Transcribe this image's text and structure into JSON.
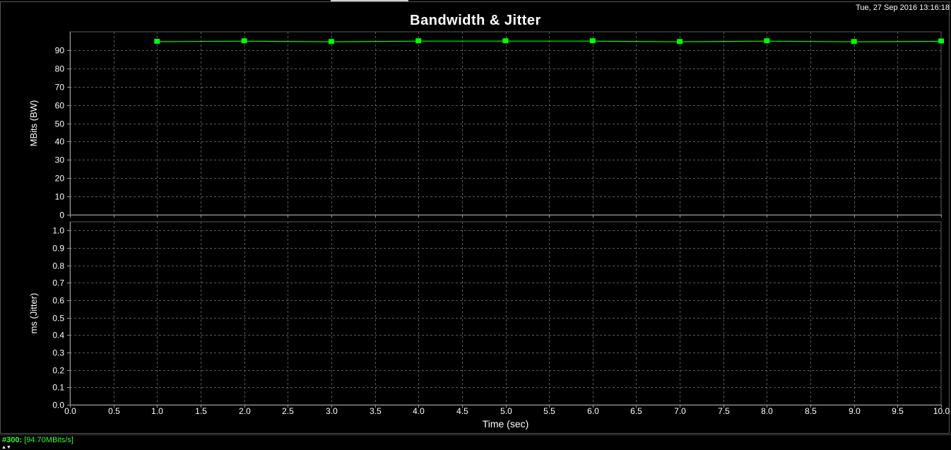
{
  "window": {
    "timestamp": "Tue, 27 Sep 2016 13:16:18"
  },
  "status": {
    "stream_id": "#300:",
    "value": "[94.70MBits/s]"
  },
  "colors": {
    "background": "#000000",
    "grid": "#5a5a5a",
    "axis": "#9a9a9a",
    "text": "#ffffff",
    "series": "#00ff00"
  },
  "chart_data": [
    {
      "type": "line",
      "title": "Bandwidth & Jitter",
      "xlabel": "",
      "ylabel": "MBits (BW)",
      "xlim": [
        0,
        10
      ],
      "ylim": [
        0,
        100
      ],
      "x_ticks": [
        0.0,
        0.5,
        1.0,
        1.5,
        2.0,
        2.5,
        3.0,
        3.5,
        4.0,
        4.5,
        5.0,
        5.5,
        6.0,
        6.5,
        7.0,
        7.5,
        8.0,
        8.5,
        9.0,
        9.5,
        10.0
      ],
      "y_ticks": [
        0,
        10,
        20,
        30,
        40,
        50,
        60,
        70,
        80,
        90
      ],
      "grid": true,
      "series": [
        {
          "color": "#00ff00",
          "x": [
            1,
            2,
            3,
            4,
            5,
            6,
            7,
            8,
            9,
            10
          ],
          "values": [
            94.6,
            94.9,
            94.5,
            94.9,
            94.9,
            94.9,
            94.5,
            94.9,
            94.5,
            94.8
          ]
        }
      ]
    },
    {
      "type": "line",
      "title": "",
      "xlabel": "Time (sec)",
      "ylabel": "ms (Jitter)",
      "xlim": [
        0,
        10
      ],
      "ylim": [
        0,
        1.05
      ],
      "x_ticks": [
        0.0,
        0.5,
        1.0,
        1.5,
        2.0,
        2.5,
        3.0,
        3.5,
        4.0,
        4.5,
        5.0,
        5.5,
        6.0,
        6.5,
        7.0,
        7.5,
        8.0,
        8.5,
        9.0,
        9.5,
        10.0
      ],
      "y_ticks": [
        0.0,
        0.1,
        0.2,
        0.3,
        0.4,
        0.5,
        0.6,
        0.7,
        0.8,
        0.9,
        1.0
      ],
      "grid": true,
      "series": []
    }
  ]
}
